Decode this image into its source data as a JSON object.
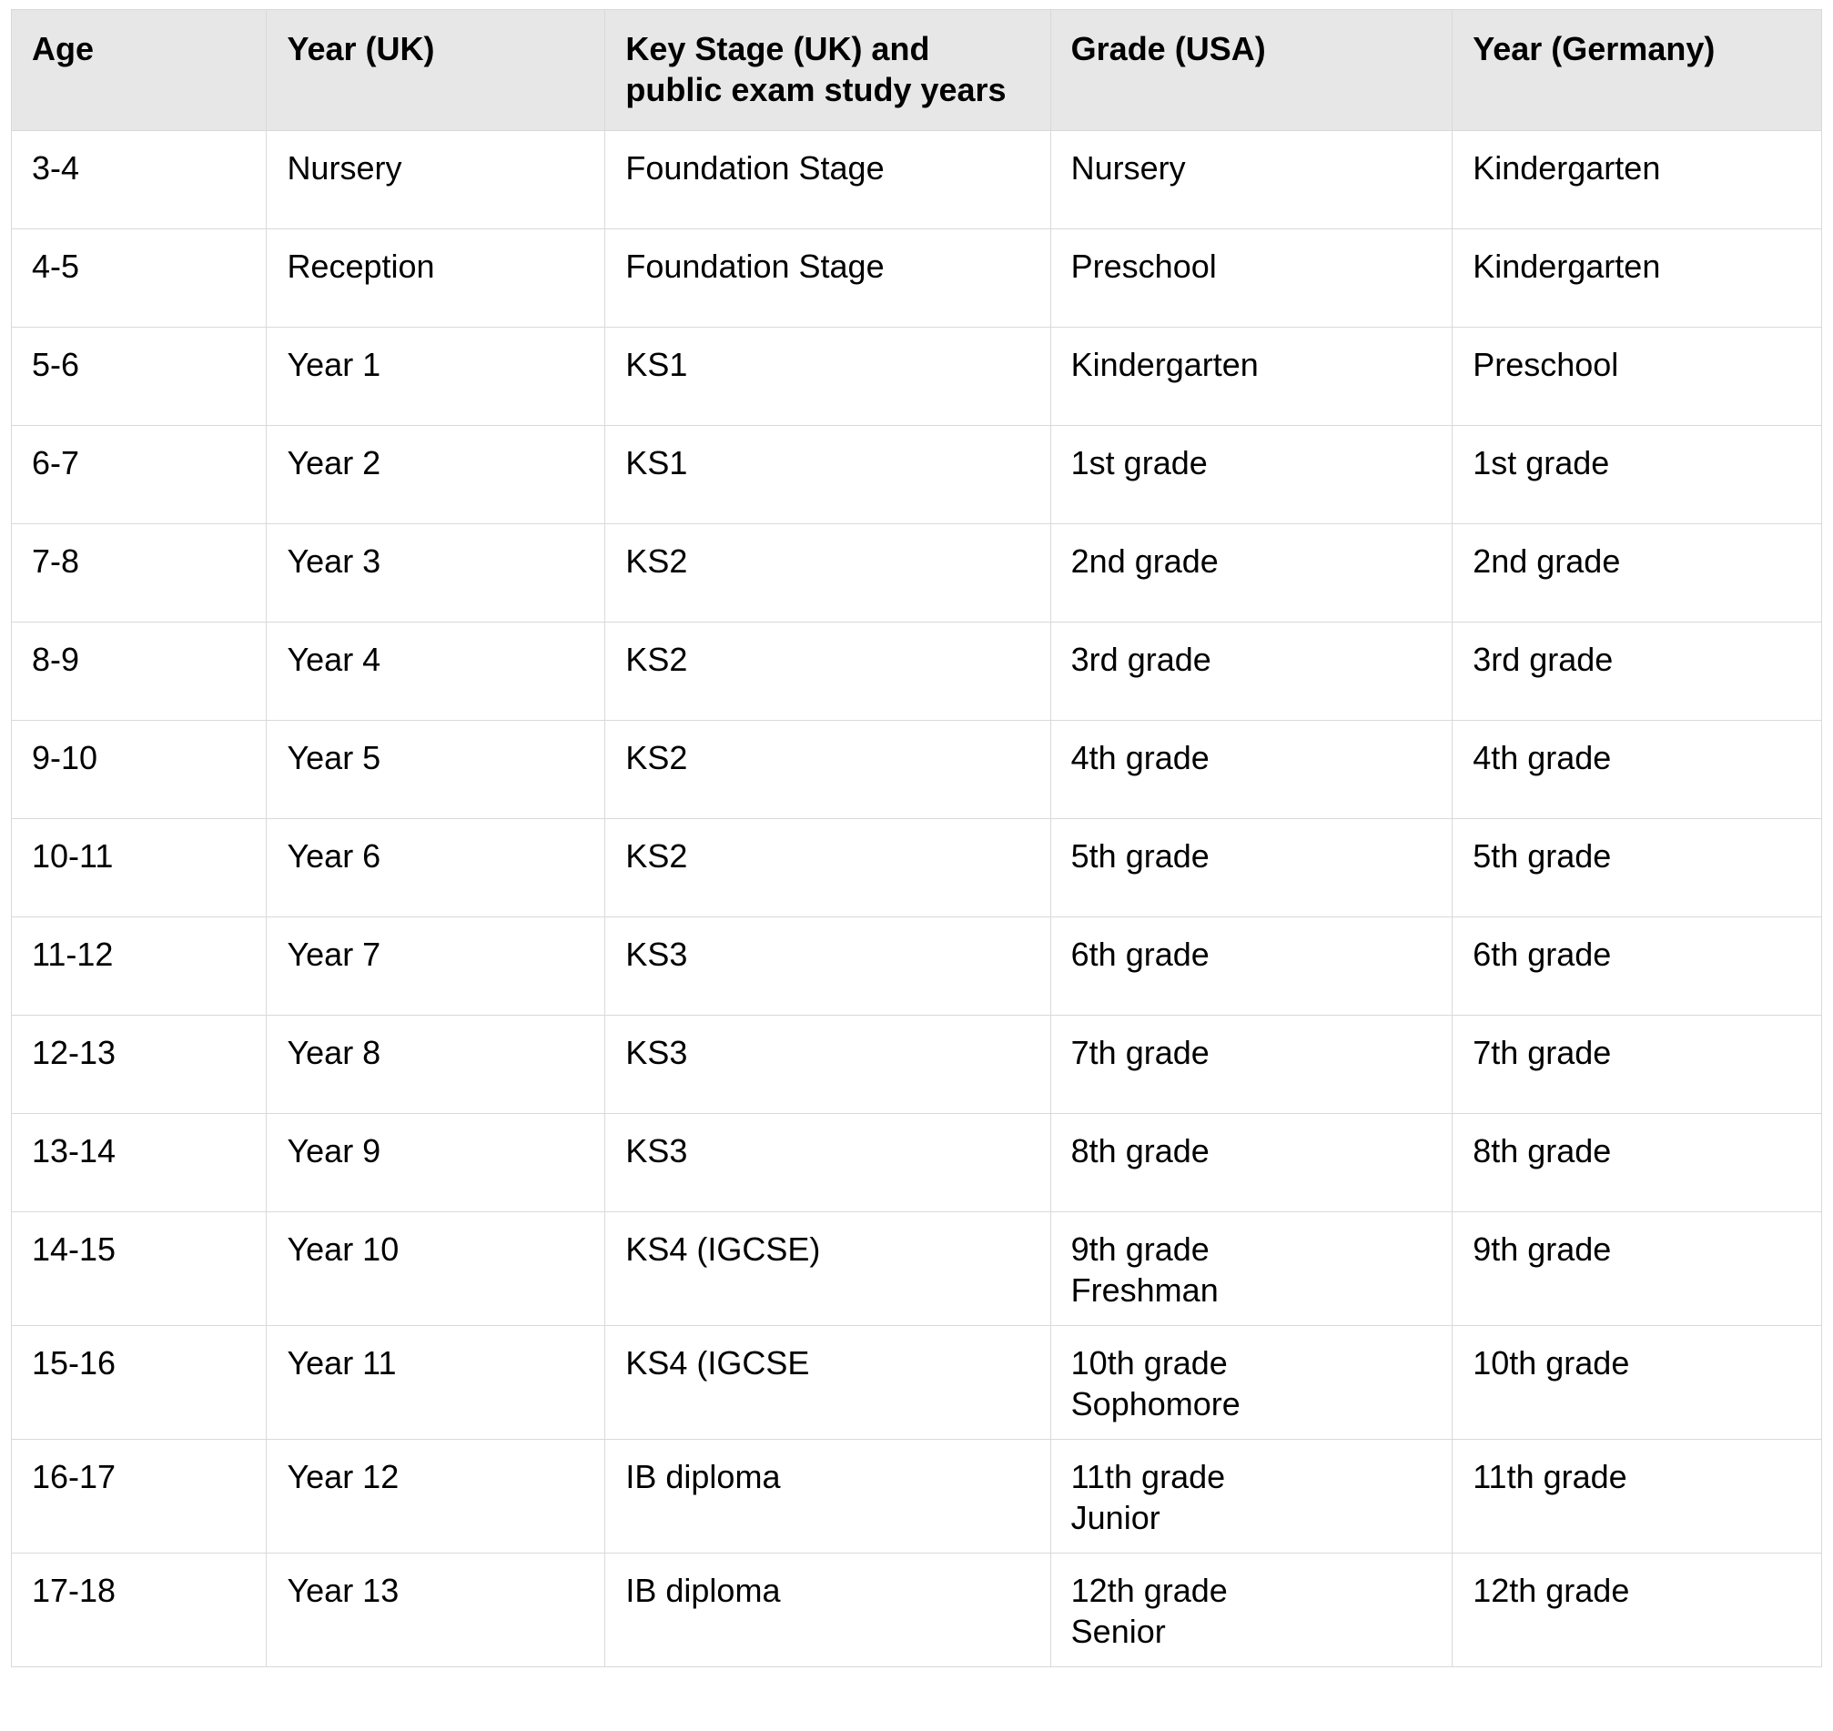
{
  "table": {
    "type": "table",
    "border_color": "#d9d9d9",
    "header_bg": "#e7e7e7",
    "row_bg": "#ffffff",
    "text_color": "#000000",
    "header_font_weight": "700",
    "body_font_weight": "400",
    "font_size_pt": 18,
    "column_widths_pct": [
      14.1,
      18.7,
      24.6,
      22.2,
      20.4
    ],
    "columns": [
      "Age",
      "Year (UK)",
      "Key Stage (UK) and public exam study years",
      "Grade (USA)",
      "Year (Germany)"
    ],
    "rows": [
      {
        "tight": false,
        "cells": [
          [
            "3-4"
          ],
          [
            "Nursery"
          ],
          [
            "Foundation Stage"
          ],
          [
            "Nursery"
          ],
          [
            "Kindergarten"
          ]
        ]
      },
      {
        "tight": false,
        "cells": [
          [
            "4-5"
          ],
          [
            "Reception"
          ],
          [
            "Foundation Stage"
          ],
          [
            "Preschool"
          ],
          [
            "Kindergarten"
          ]
        ]
      },
      {
        "tight": false,
        "cells": [
          [
            "5-6"
          ],
          [
            "Year 1"
          ],
          [
            "KS1"
          ],
          [
            "Kindergarten"
          ],
          [
            "Preschool"
          ]
        ]
      },
      {
        "tight": false,
        "cells": [
          [
            "6-7"
          ],
          [
            "Year 2"
          ],
          [
            "KS1"
          ],
          [
            "1st grade"
          ],
          [
            "1st grade"
          ]
        ]
      },
      {
        "tight": false,
        "cells": [
          [
            "7-8"
          ],
          [
            "Year 3"
          ],
          [
            "KS2"
          ],
          [
            "2nd grade"
          ],
          [
            "2nd grade"
          ]
        ]
      },
      {
        "tight": false,
        "cells": [
          [
            "8-9"
          ],
          [
            "Year 4"
          ],
          [
            "KS2"
          ],
          [
            "3rd grade"
          ],
          [
            "3rd grade"
          ]
        ]
      },
      {
        "tight": false,
        "cells": [
          [
            "9-10"
          ],
          [
            "Year 5"
          ],
          [
            "KS2"
          ],
          [
            "4th grade"
          ],
          [
            "4th grade"
          ]
        ]
      },
      {
        "tight": false,
        "cells": [
          [
            "10-11"
          ],
          [
            "Year 6"
          ],
          [
            "KS2"
          ],
          [
            "5th grade"
          ],
          [
            "5th grade"
          ]
        ]
      },
      {
        "tight": false,
        "cells": [
          [
            "11-12"
          ],
          [
            "Year 7"
          ],
          [
            "KS3"
          ],
          [
            "6th grade"
          ],
          [
            "6th grade"
          ]
        ]
      },
      {
        "tight": false,
        "cells": [
          [
            "12-13"
          ],
          [
            "Year 8"
          ],
          [
            "KS3"
          ],
          [
            "7th grade"
          ],
          [
            "7th grade"
          ]
        ]
      },
      {
        "tight": false,
        "cells": [
          [
            "13-14"
          ],
          [
            "Year 9"
          ],
          [
            "KS3"
          ],
          [
            "8th grade"
          ],
          [
            "8th grade"
          ]
        ]
      },
      {
        "tight": true,
        "cells": [
          [
            "14-15"
          ],
          [
            "Year 10"
          ],
          [
            "KS4 (IGCSE)"
          ],
          [
            "9th grade",
            "Freshman"
          ],
          [
            "9th grade"
          ]
        ]
      },
      {
        "tight": true,
        "cells": [
          [
            "15-16"
          ],
          [
            "Year 11"
          ],
          [
            "KS4 (IGCSE"
          ],
          [
            "10th grade",
            "Sophomore"
          ],
          [
            "10th grade"
          ]
        ]
      },
      {
        "tight": true,
        "cells": [
          [
            "16-17"
          ],
          [
            "Year 12"
          ],
          [
            "IB diploma"
          ],
          [
            "11th grade",
            "Junior"
          ],
          [
            "11th grade"
          ]
        ]
      },
      {
        "tight": true,
        "cells": [
          [
            "17-18"
          ],
          [
            "Year 13"
          ],
          [
            "IB diploma"
          ],
          [
            "12th grade",
            "Senior"
          ],
          [
            "12th grade"
          ]
        ]
      }
    ]
  }
}
